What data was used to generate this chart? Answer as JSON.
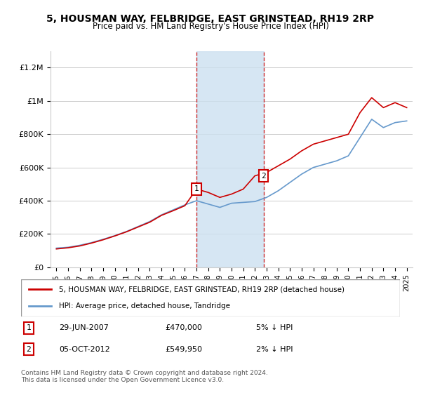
{
  "title": "5, HOUSMAN WAY, FELBRIDGE, EAST GRINSTEAD, RH19 2RP",
  "subtitle": "Price paid vs. HM Land Registry's House Price Index (HPI)",
  "legend_line1": "5, HOUSMAN WAY, FELBRIDGE, EAST GRINSTEAD, RH19 2RP (detached house)",
  "legend_line2": "HPI: Average price, detached house, Tandridge",
  "annotation1_label": "1",
  "annotation1_date": "29-JUN-2007",
  "annotation1_price": "£470,000",
  "annotation1_hpi": "5% ↓ HPI",
  "annotation2_label": "2",
  "annotation2_date": "05-OCT-2012",
  "annotation2_price": "£549,950",
  "annotation2_hpi": "2% ↓ HPI",
  "footer": "Contains HM Land Registry data © Crown copyright and database right 2024.\nThis data is licensed under the Open Government Licence v3.0.",
  "red_line_color": "#cc0000",
  "blue_line_color": "#6699cc",
  "shade_color": "#cce0f0",
  "shade_alpha": 0.5,
  "marker1_x": 2007.5,
  "marker2_x": 2012.75,
  "ylim": [
    0,
    1300000
  ],
  "xlim": [
    1995,
    2025
  ],
  "background_color": "#ffffff",
  "hpi_years": [
    1995,
    1996,
    1997,
    1998,
    1999,
    2000,
    2001,
    2002,
    2003,
    2004,
    2005,
    2006,
    2007,
    2008,
    2009,
    2010,
    2011,
    2012,
    2013,
    2014,
    2015,
    2016,
    2017,
    2018,
    2019,
    2020,
    2021,
    2022,
    2023,
    2024,
    2025
  ],
  "hpi_values": [
    115000,
    120000,
    132000,
    148000,
    168000,
    190000,
    215000,
    245000,
    275000,
    315000,
    345000,
    375000,
    400000,
    380000,
    360000,
    385000,
    390000,
    395000,
    420000,
    460000,
    510000,
    560000,
    600000,
    620000,
    640000,
    670000,
    780000,
    890000,
    840000,
    870000,
    880000
  ],
  "red_years": [
    1995,
    1996,
    1997,
    1998,
    1999,
    2000,
    2001,
    2002,
    2003,
    2004,
    2005,
    2006,
    2007,
    2008,
    2009,
    2010,
    2011,
    2012,
    2013,
    2014,
    2015,
    2016,
    2017,
    2018,
    2019,
    2020,
    2021,
    2022,
    2023,
    2024,
    2025
  ],
  "red_values": [
    110000,
    117000,
    128000,
    145000,
    165000,
    188000,
    213000,
    242000,
    271000,
    312000,
    340000,
    370000,
    470000,
    450000,
    420000,
    440000,
    470000,
    549950,
    570000,
    610000,
    650000,
    700000,
    740000,
    760000,
    780000,
    800000,
    930000,
    1020000,
    960000,
    990000,
    960000
  ]
}
